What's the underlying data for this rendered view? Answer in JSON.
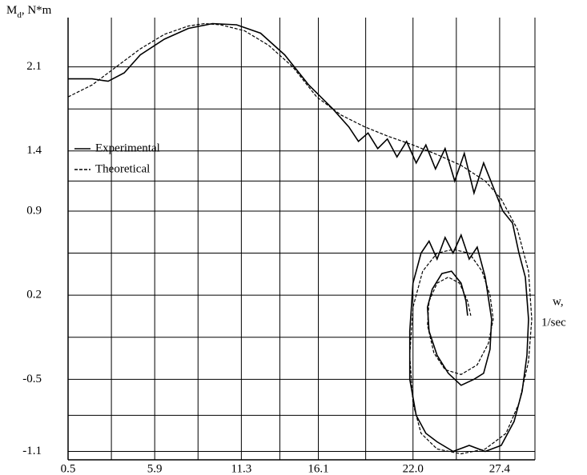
{
  "chart_data": {
    "type": "line",
    "y_label_main": "M",
    "y_label_sub": "d",
    "y_label_unit": ", N*m",
    "x_label_line1": "w,",
    "x_label_line2": "1/sec",
    "xlim": [
      0.5,
      29.6
    ],
    "xticks": [
      0.5,
      5.9,
      11.3,
      16.1,
      {
        "value": 22,
        "label": "22.0"
      },
      27.4
    ],
    "ylim": [
      -1.17,
      2.51
    ],
    "yticks": [
      2.1,
      1.4,
      0.9,
      0.2,
      -0.5,
      -1.1
    ],
    "grid": true,
    "legend": "upper left",
    "series": [
      {
        "name": "Experimental",
        "color": "#000000",
        "style": "solid",
        "x": [
          0.5,
          2,
          3,
          4,
          5,
          6.5,
          8,
          9.5,
          11,
          12.5,
          14,
          15.5,
          17,
          18,
          18.6,
          19.2,
          19.8,
          20.4,
          21,
          21.6,
          22.2,
          22.8,
          23.4,
          24,
          24.6,
          25.2,
          25.8,
          26.4,
          27,
          27.6,
          28.2,
          28.6,
          29,
          29.2,
          29.1,
          28.8,
          28.3,
          27.5,
          26.5,
          25.5,
          24.5,
          23.5,
          22.8,
          22.2,
          21.8,
          21.8,
          22,
          22.5,
          23,
          23.5,
          24,
          24.5,
          25,
          25.5,
          26,
          26.5,
          26.9,
          26.8,
          26.4,
          25.8,
          25,
          24.2,
          23.5,
          23,
          22.9,
          23.2,
          23.8,
          24.4,
          25,
          25.3,
          25.4
        ],
        "values": [
          2.0,
          2.0,
          1.98,
          2.05,
          2.2,
          2.33,
          2.42,
          2.46,
          2.45,
          2.38,
          2.2,
          1.95,
          1.75,
          1.6,
          1.48,
          1.55,
          1.42,
          1.5,
          1.35,
          1.48,
          1.3,
          1.45,
          1.25,
          1.42,
          1.15,
          1.38,
          1.05,
          1.3,
          1.1,
          0.9,
          0.8,
          0.55,
          0.35,
          0.0,
          -0.3,
          -0.6,
          -0.85,
          -1.05,
          -1.1,
          -1.05,
          -1.1,
          -1.02,
          -0.95,
          -0.8,
          -0.5,
          -0.1,
          0.3,
          0.55,
          0.65,
          0.5,
          0.68,
          0.55,
          0.7,
          0.5,
          0.6,
          0.35,
          0.0,
          -0.25,
          -0.45,
          -0.5,
          -0.55,
          -0.45,
          -0.3,
          -0.1,
          0.1,
          0.25,
          0.38,
          0.4,
          0.3,
          0.15,
          0.03
        ]
      },
      {
        "name": "Theoretical",
        "color": "#000000",
        "style": "dashed",
        "x": [
          0.5,
          2,
          3.5,
          5,
          6.5,
          8,
          9,
          10,
          11.5,
          13,
          14.5,
          16,
          17.5,
          19,
          20.5,
          22,
          23.5,
          25,
          26.5,
          27.5,
          28.5,
          29.2,
          29.4,
          29.2,
          28.6,
          27.8,
          26.5,
          25,
          23.5,
          22.5,
          22,
          21.8,
          22,
          22.6,
          23.5,
          24.5,
          25.5,
          26.3,
          26.8,
          27,
          26.7,
          26,
          25,
          24,
          23.3,
          22.9,
          23,
          23.5,
          24.2,
          24.9,
          25.4,
          25.6
        ],
        "values": [
          1.85,
          1.95,
          2.1,
          2.25,
          2.37,
          2.44,
          2.46,
          2.45,
          2.4,
          2.28,
          2.1,
          1.85,
          1.7,
          1.6,
          1.52,
          1.45,
          1.37,
          1.28,
          1.15,
          1.0,
          0.75,
          0.4,
          0.0,
          -0.35,
          -0.7,
          -0.95,
          -1.08,
          -1.12,
          -1.08,
          -0.95,
          -0.7,
          -0.3,
          0.1,
          0.4,
          0.55,
          0.58,
          0.55,
          0.4,
          0.2,
          0.0,
          -0.2,
          -0.38,
          -0.46,
          -0.42,
          -0.28,
          -0.05,
          0.15,
          0.3,
          0.35,
          0.3,
          0.15,
          0.03
        ]
      }
    ]
  }
}
